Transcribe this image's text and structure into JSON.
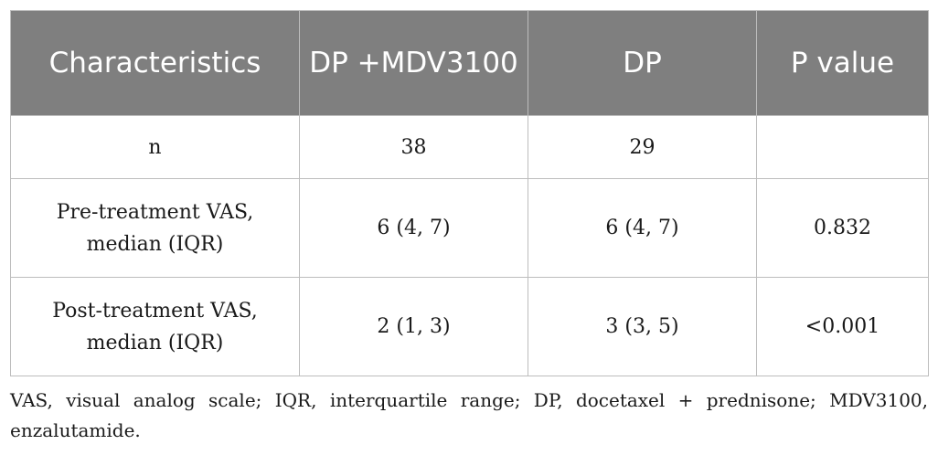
{
  "table": {
    "headers": [
      "Characteristics",
      "DP +MDV3100",
      "DP",
      "P value"
    ],
    "rows": [
      {
        "label": "n",
        "dp_mdv": "38",
        "dp": "29",
        "p": ""
      },
      {
        "label": "Pre-treatment VAS, median (IQR)",
        "dp_mdv": "6 (4, 7)",
        "dp": "6 (4, 7)",
        "p": "0.832"
      },
      {
        "label": "Post-treatment VAS, median (IQR)",
        "dp_mdv": "2 (1, 3)",
        "dp": "3 (3, 5)",
        "p": "<0.001"
      }
    ]
  },
  "footnote": "VAS, visual analog scale; IQR, interquartile range; DP, docetaxel + prednisone; MDV3100, enzalutamide.",
  "colors": {
    "header_bg": "#7f7f7f",
    "header_text": "#ffffff",
    "border": "#bdbdbd"
  }
}
